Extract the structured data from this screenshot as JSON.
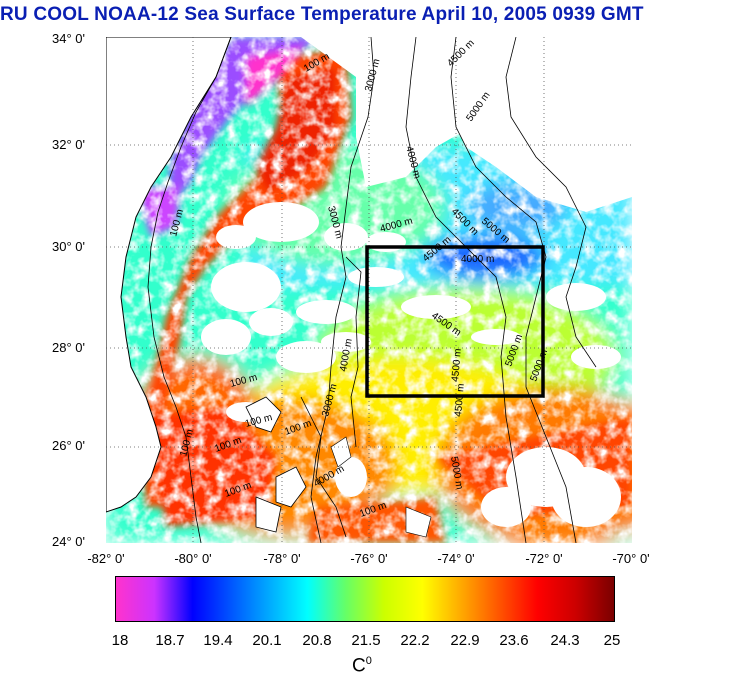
{
  "title": "RU COOL  NOAA-12 Sea Surface Temperature April 10, 2005 0939 GMT",
  "y_labels": [
    "34° 0'",
    "32° 0'",
    "30° 0'",
    "28° 0'",
    "26° 0'",
    "24° 0'"
  ],
  "x_labels": [
    "-82° 0'",
    "-80° 0'",
    "-78° 0'",
    "-76° 0'",
    "-74° 0'",
    "-72° 0'",
    "-70° 0'"
  ],
  "contour_labels": [
    "100 m",
    "3000 m",
    "4000 m",
    "4500 m",
    "5000 m",
    "3000 m",
    "4000 m",
    "4500 m",
    "5000 m",
    "100 m",
    "4000 m",
    "4500 m",
    "4500 m",
    "5000 m",
    "5000 m",
    "4500 m",
    "4500 m",
    "5000 m",
    "100 m",
    "100 m",
    "100 m",
    "100 m",
    "100 m",
    "100 m",
    "3000 m",
    "4000 m",
    "4000 m",
    "100 m"
  ],
  "colorbar": {
    "labels": [
      "18",
      "18.7",
      "19.4",
      "20.1",
      "20.8",
      "21.5",
      "22.2",
      "22.9",
      "23.6",
      "24.3",
      "25"
    ],
    "unit": "C",
    "unit_sup": "0",
    "colors": [
      "#ff33cc",
      "#cc33ff",
      "#0000ff",
      "#0055ff",
      "#00aaff",
      "#00ffff",
      "#66ff66",
      "#ccff00",
      "#ffff00",
      "#ffaa00",
      "#ff5500",
      "#ff0000",
      "#cc0000",
      "#7a0000"
    ]
  }
}
